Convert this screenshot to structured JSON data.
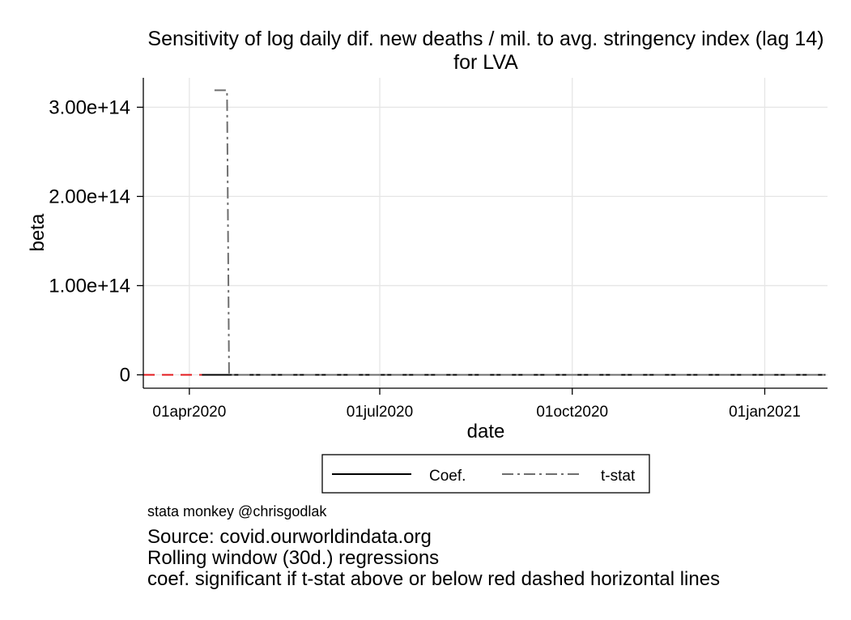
{
  "chart_data": {
    "type": "line",
    "title": "Sensitivity of log daily dif. new deaths / mil. to avg. stringency index (lag 14)",
    "subtitle": "for LVA",
    "xlabel": "date",
    "ylabel": "beta",
    "x_ticks": [
      "01apr2020",
      "01jul2020",
      "01oct2020",
      "01jan2021"
    ],
    "y_ticks": [
      "0",
      "1.00e+14",
      "2.00e+14",
      "3.00e+14"
    ],
    "y_tick_values": [
      0,
      100000000000000.0,
      200000000000000.0,
      300000000000000.0
    ],
    "xlim": [
      "2020-03-10",
      "2021-01-31"
    ],
    "ylim": [
      -15000000000000.0,
      333000000000000.0
    ],
    "grid": true,
    "legend_position": "bottom",
    "reference_lines": [
      {
        "y": 0,
        "style": "dashed",
        "color": "#e31a1c"
      }
    ],
    "series": [
      {
        "name": "Coef.",
        "style": "solid",
        "color": "#000000",
        "points": [
          [
            "2020-04-07",
            0
          ],
          [
            "2021-01-30",
            0
          ]
        ]
      },
      {
        "name": "t-stat",
        "style": "dashdot",
        "color": "#6e6e6e",
        "points": [
          [
            "2020-04-13",
            319000000000000.0
          ],
          [
            "2020-04-19",
            319000000000000.0
          ],
          [
            "2020-04-19",
            315000000000000.0
          ],
          [
            "2020-04-20",
            0
          ],
          [
            "2021-01-30",
            0
          ]
        ]
      }
    ]
  },
  "notes": {
    "credit": "stata monkey @chrisgodlak",
    "lines": [
      "Source: covid.ourworldindata.org",
      "Rolling window (30d.) regressions",
      "coef. significant if t-stat above or below red dashed horizontal lines"
    ]
  }
}
